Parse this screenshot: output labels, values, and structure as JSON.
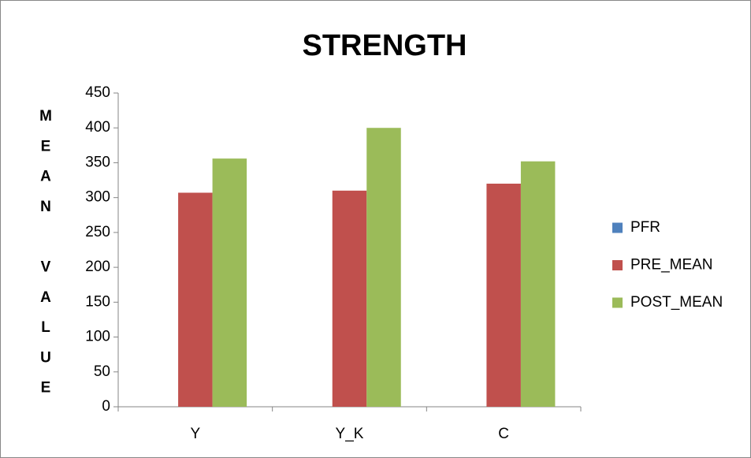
{
  "chart_data": {
    "type": "bar",
    "title": "STRENGTH",
    "y_label": "MEAN VALUE",
    "categories": [
      "Y",
      "Y_K",
      "C"
    ],
    "series": [
      {
        "name": "PFR",
        "color": "#4f81bd",
        "values": [
          null,
          null,
          null
        ]
      },
      {
        "name": "PRE_MEAN",
        "color": "#c0504d",
        "values": [
          307,
          310,
          320
        ]
      },
      {
        "name": "POST_MEAN",
        "color": "#9bbb59",
        "values": [
          356,
          400,
          352
        ]
      }
    ],
    "ylim": [
      0,
      450
    ],
    "yticks": [
      0,
      50,
      100,
      150,
      200,
      250,
      300,
      350,
      400,
      450
    ],
    "grid": false,
    "legend": "right"
  }
}
